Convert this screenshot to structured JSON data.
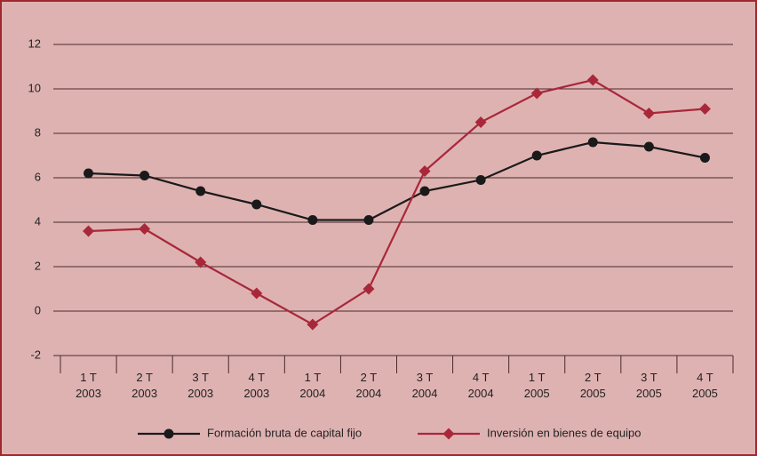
{
  "chart_data": {
    "type": "line",
    "categories": [
      "1 T\n2003",
      "2 T\n2003",
      "3 T\n2003",
      "4 T\n2003",
      "1 T\n2004",
      "2 T\n2004",
      "3 T\n2004",
      "4 T\n2004",
      "1 T\n2005",
      "2 T\n2005",
      "3 T\n2005",
      "4 T\n2005"
    ],
    "series": [
      {
        "name": "Formación bruta de capital fijo",
        "color": "#1a1a1a",
        "marker": "circle",
        "values": [
          6.2,
          6.1,
          5.4,
          4.8,
          4.1,
          4.1,
          5.4,
          5.9,
          7.0,
          7.6,
          7.4,
          6.9
        ]
      },
      {
        "name": "Inversión en bienes de equipo",
        "color": "#a8283a",
        "marker": "diamond",
        "values": [
          3.6,
          3.7,
          2.2,
          0.8,
          -0.6,
          1.0,
          6.3,
          8.5,
          9.8,
          10.4,
          8.9,
          9.1
        ]
      }
    ],
    "ylim": [
      -2,
      12
    ],
    "yticks": [
      -2,
      0,
      2,
      4,
      6,
      8,
      10,
      12
    ],
    "grid": true,
    "legend": "bottom"
  }
}
